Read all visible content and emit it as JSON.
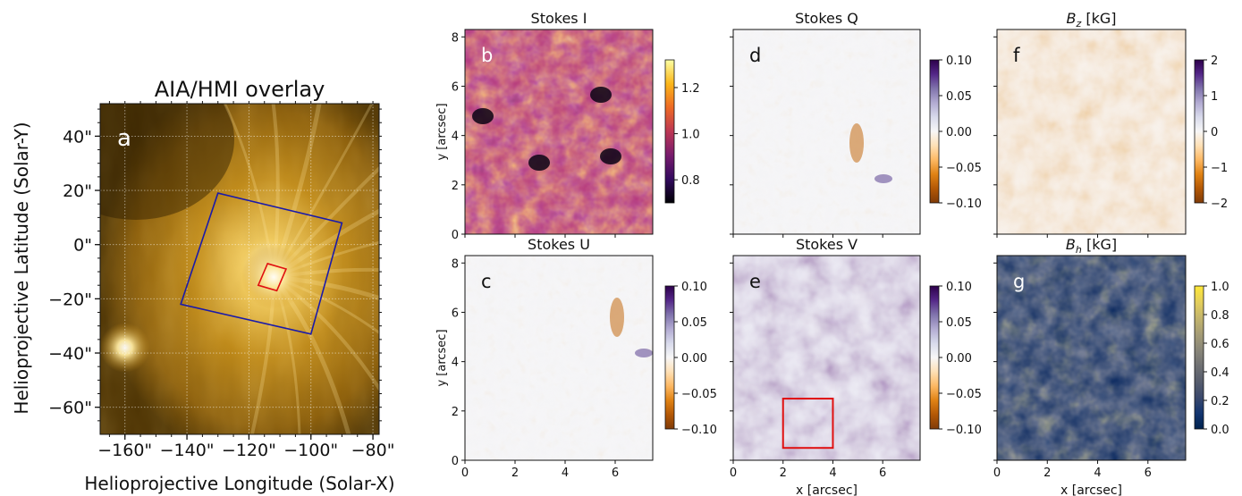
{
  "chart_data": [
    {
      "id": "a",
      "type": "heatmap",
      "panel_letter": "a",
      "title": "AIA/HMI overlay",
      "xlabel": "Helioprojective Longitude (Solar-X)",
      "ylabel": "Helioprojective Latitude (Solar-Y)",
      "xlim": [
        -168,
        -78
      ],
      "ylim": [
        -70,
        52
      ],
      "x_ticks": [
        -160,
        -140,
        -120,
        -100,
        -80
      ],
      "x_tick_labels": [
        "−160\"",
        "−140\"",
        "−120\"",
        "−100\"",
        "−80\""
      ],
      "y_ticks": [
        40,
        20,
        0,
        -20,
        -40,
        -60
      ],
      "y_tick_labels": [
        "40\"",
        "20\"",
        "0\"",
        "−20\"",
        "−40\"",
        "−60\""
      ],
      "grid": true,
      "colormap": "sdoaia171",
      "overlays": [
        {
          "shape": "rotated-box",
          "color": "#1a1aaa",
          "corners": [
            [
              -130,
              19
            ],
            [
              -90,
              8
            ],
            [
              -100,
              -33
            ],
            [
              -142,
              -22
            ]
          ]
        },
        {
          "shape": "rotated-box",
          "color": "#e01010",
          "corners": [
            [
              -114,
              -7
            ],
            [
              -108,
              -9
            ],
            [
              -111,
              -17
            ],
            [
              -117,
              -15
            ]
          ]
        }
      ]
    },
    {
      "id": "b",
      "type": "heatmap",
      "panel_letter": "b",
      "title": "Stokes I",
      "xlabel": "",
      "ylabel": "y [arcsec]",
      "xlim": [
        0,
        7.5
      ],
      "ylim": [
        0,
        8.3
      ],
      "x_ticks": [
        0,
        2,
        4,
        6
      ],
      "y_ticks": [
        0,
        2,
        4,
        6,
        8
      ],
      "x_tick_labels": [],
      "y_tick_labels": [
        "0",
        "2",
        "4",
        "6",
        "8"
      ],
      "colormap": "inferno",
      "colorbar": {
        "min": 0.7,
        "max": 1.32,
        "ticks": [
          0.8,
          1.0,
          1.2
        ],
        "tick_labels": [
          "0.8",
          "1.0",
          "1.2"
        ]
      }
    },
    {
      "id": "d",
      "type": "heatmap",
      "panel_letter": "d",
      "title": "Stokes Q",
      "xlabel": "",
      "ylabel": "",
      "xlim": [
        0,
        7.5
      ],
      "ylim": [
        0,
        8.3
      ],
      "x_ticks": [
        0,
        2,
        4,
        6
      ],
      "y_ticks": [
        0,
        2,
        4,
        6,
        8
      ],
      "x_tick_labels": [],
      "y_tick_labels": [],
      "colormap": "PuOr",
      "colorbar": {
        "min": -0.1,
        "max": 0.1,
        "ticks": [
          0.1,
          0.05,
          0.0,
          -0.05,
          -0.1
        ],
        "tick_labels": [
          "0.10",
          "0.05",
          "0.00",
          "−0.05",
          "−0.10"
        ]
      }
    },
    {
      "id": "f",
      "type": "heatmap",
      "panel_letter": "f",
      "title": "B_z [kG]",
      "title_parts": {
        "main": "B",
        "sub": "z",
        "unit": " [kG]"
      },
      "xlabel": "",
      "ylabel": "",
      "xlim": [
        0,
        7.5
      ],
      "ylim": [
        0,
        8.3
      ],
      "x_ticks": [
        0,
        2,
        4,
        6
      ],
      "y_ticks": [
        0,
        2,
        4,
        6,
        8
      ],
      "x_tick_labels": [],
      "y_tick_labels": [],
      "colormap": "PuOr",
      "colorbar": {
        "min": -2,
        "max": 2,
        "ticks": [
          2,
          1,
          0,
          -1,
          -2
        ],
        "tick_labels": [
          "2",
          "1",
          "0",
          "−1",
          "−2"
        ]
      }
    },
    {
      "id": "c",
      "type": "heatmap",
      "panel_letter": "c",
      "title": "Stokes U",
      "xlabel": "",
      "ylabel": "y [arcsec]",
      "xlim": [
        0,
        7.5
      ],
      "ylim": [
        0,
        8.3
      ],
      "x_ticks": [
        0,
        2,
        4,
        6
      ],
      "y_ticks": [
        0,
        2,
        4,
        6,
        8
      ],
      "x_tick_labels": [
        "0",
        "2",
        "4",
        "6"
      ],
      "y_tick_labels": [
        "0",
        "2",
        "4",
        "6",
        "8"
      ],
      "colormap": "PuOr",
      "colorbar": {
        "min": -0.1,
        "max": 0.1,
        "ticks": [
          0.1,
          0.05,
          0.0,
          -0.05,
          -0.1
        ],
        "tick_labels": [
          "0.10",
          "0.05",
          "0.00",
          "−0.05",
          "−0.10"
        ]
      }
    },
    {
      "id": "e",
      "type": "heatmap",
      "panel_letter": "e",
      "title": "Stokes V",
      "xlabel": "x [arcsec]",
      "ylabel": "",
      "xlim": [
        0,
        7.5
      ],
      "ylim": [
        0,
        8.3
      ],
      "x_ticks": [
        0,
        2,
        4,
        6
      ],
      "y_ticks": [
        0,
        2,
        4,
        6,
        8
      ],
      "x_tick_labels": [
        "0",
        "2",
        "4",
        "6"
      ],
      "y_tick_labels": [],
      "colormap": "PuOr",
      "colorbar": {
        "min": -0.1,
        "max": 0.1,
        "ticks": [
          0.1,
          0.05,
          0.0,
          -0.05,
          -0.1
        ],
        "tick_labels": [
          "0.10",
          "0.05",
          "0.00",
          "−0.05",
          "−0.10"
        ]
      },
      "overlays": [
        {
          "shape": "box",
          "color": "#e01010",
          "x": [
            2,
            4
          ],
          "y": [
            0.5,
            2.5
          ]
        }
      ]
    },
    {
      "id": "g",
      "type": "heatmap",
      "panel_letter": "g",
      "title": "B_h [kG]",
      "title_parts": {
        "main": "B",
        "sub": "h",
        "unit": " [kG]"
      },
      "xlabel": "x [arcsec]",
      "ylabel": "",
      "xlim": [
        0,
        7.5
      ],
      "ylim": [
        0,
        8.3
      ],
      "x_ticks": [
        0,
        2,
        4,
        6
      ],
      "y_ticks": [
        0,
        2,
        4,
        6,
        8
      ],
      "x_tick_labels": [
        "0",
        "2",
        "4",
        "6"
      ],
      "y_tick_labels": [],
      "colormap": "cividis",
      "colorbar": {
        "min": 0.0,
        "max": 1.0,
        "ticks": [
          1.0,
          0.8,
          0.6,
          0.4,
          0.2,
          0.0
        ],
        "tick_labels": [
          "1.0",
          "0.8",
          "0.6",
          "0.4",
          "0.2",
          "0.0"
        ]
      }
    }
  ],
  "colors": {
    "aia_dark": "#3a2400",
    "aia_mid": "#b07a10",
    "aia_bright": "#fff4c0",
    "blue_box": "#1a1aaa",
    "red_box": "#e01010"
  }
}
